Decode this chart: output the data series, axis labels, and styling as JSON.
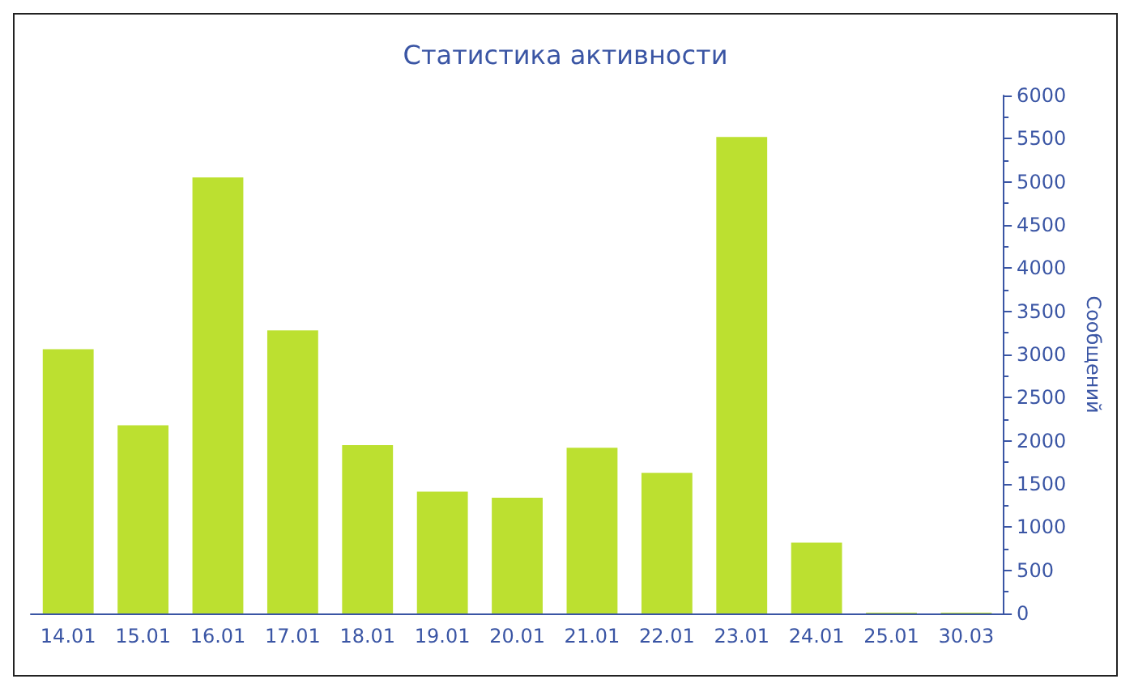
{
  "chart_data": {
    "type": "bar",
    "title": "Статистика активности",
    "ylabel": "Сообщений",
    "categories": [
      "14.01",
      "15.01",
      "16.01",
      "17.01",
      "18.01",
      "19.01",
      "20.01",
      "21.01",
      "22.01",
      "23.01",
      "24.01",
      "25.01",
      "30.03"
    ],
    "values": [
      3060,
      2180,
      5050,
      3280,
      1950,
      1410,
      1340,
      1920,
      1630,
      5520,
      820,
      10,
      10
    ],
    "color": "#bce030",
    "ylim": [
      0,
      6000
    ],
    "yticks": [
      0,
      500,
      1000,
      1500,
      2000,
      2500,
      3000,
      3500,
      4000,
      4500,
      5000,
      5500,
      6000
    ],
    "grid": false
  }
}
